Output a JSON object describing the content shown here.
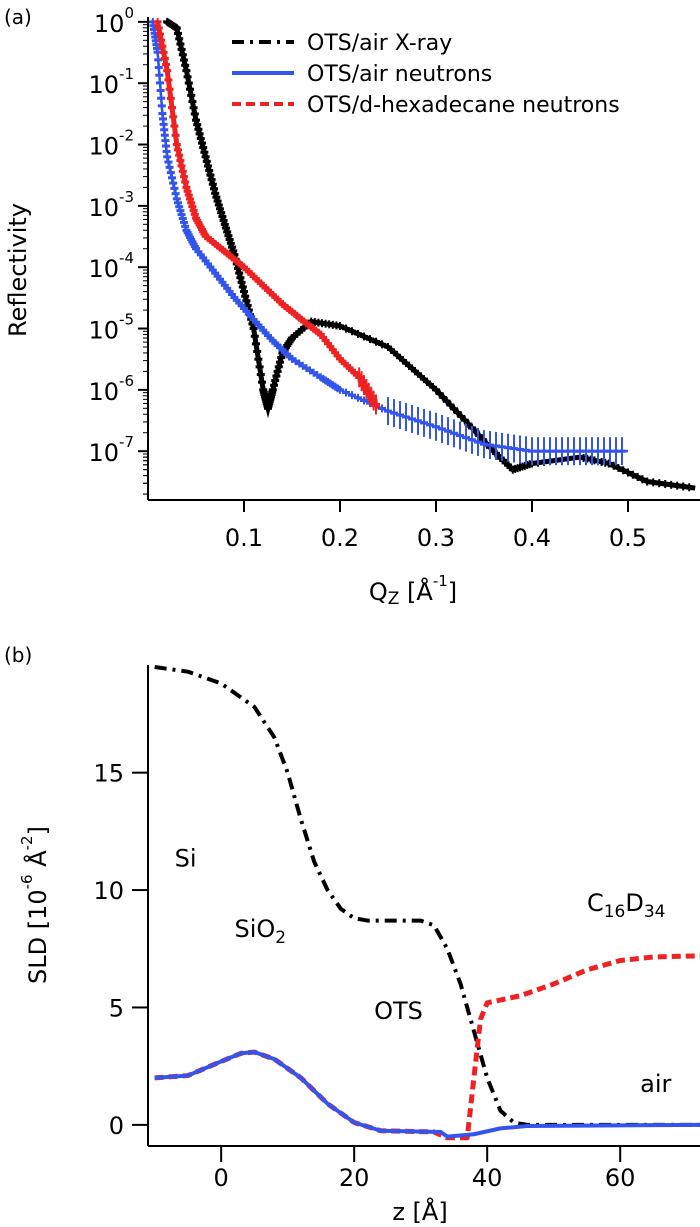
{
  "chart_data": [
    {
      "panel_label": "(a)",
      "type": "scatter",
      "xlabel": {
        "main": "Q",
        "sub": "Z",
        "rest": " [Å",
        "sup": "-1",
        "end": "]"
      },
      "ylabel": "Reflectivity",
      "xlim": [
        0,
        0.575
      ],
      "ylim": [
        1.6e-08,
        1.2
      ],
      "yscale": "log",
      "xticks": [
        "0.1",
        "0.2",
        "0.3",
        "0.4",
        "0.5"
      ],
      "xtick_values": [
        0.1,
        0.2,
        0.3,
        0.4,
        0.5
      ],
      "yticks": [
        {
          "base": "10",
          "exp": "0"
        },
        {
          "base": "10",
          "exp": "-1"
        },
        {
          "base": "10",
          "exp": "-2"
        },
        {
          "base": "10",
          "exp": "-3"
        },
        {
          "base": "10",
          "exp": "-4"
        },
        {
          "base": "10",
          "exp": "-5"
        },
        {
          "base": "10",
          "exp": "-6"
        },
        {
          "base": "10",
          "exp": "-7"
        }
      ],
      "ytick_values": [
        1,
        0.1,
        0.01,
        0.001,
        0.0001,
        1e-05,
        1e-06,
        1e-07
      ],
      "legend_position": "top-right",
      "series": [
        {
          "name": "OTS/air X-ray",
          "color": "#000000",
          "style": "dash-dot",
          "x": [
            0.02,
            0.03,
            0.04,
            0.05,
            0.06,
            0.07,
            0.08,
            0.09,
            0.1,
            0.11,
            0.12,
            0.125,
            0.13,
            0.14,
            0.15,
            0.17,
            0.2,
            0.25,
            0.3,
            0.33,
            0.36,
            0.38,
            0.4,
            0.45,
            0.48,
            0.52,
            0.57
          ],
          "y": [
            1.0,
            0.79,
            0.16,
            0.025,
            0.0063,
            0.0016,
            0.0005,
            0.00016,
            4e-05,
            1e-05,
            1e-06,
            5e-07,
            1e-06,
            4e-06,
            7e-06,
            1.3e-05,
            1.1e-05,
            5e-06,
            1e-06,
            3.2e-07,
            1e-07,
            5e-08,
            6.3e-08,
            8e-08,
            6.3e-08,
            3.2e-08,
            2.5e-08
          ]
        },
        {
          "name": "OTS/air neutrons",
          "color": "#3355ee",
          "style": "solid",
          "x": [
            0.005,
            0.01,
            0.015,
            0.02,
            0.03,
            0.04,
            0.05,
            0.07,
            0.09,
            0.11,
            0.13,
            0.15,
            0.18,
            0.2,
            0.25,
            0.3,
            0.35,
            0.4,
            0.45,
            0.5
          ],
          "y": [
            1.0,
            0.32,
            0.032,
            0.0063,
            0.0013,
            0.0004,
            0.0002,
            8e-05,
            3.2e-05,
            1.4e-05,
            6.3e-06,
            3.2e-06,
            1.6e-06,
            1e-06,
            4.5e-07,
            2.5e-07,
            1.3e-07,
            1e-07,
            1e-07,
            1e-07
          ]
        },
        {
          "name": "OTS/d-hexadecane neutrons",
          "color": "#ee2222",
          "style": "dashed",
          "x": [
            0.01,
            0.02,
            0.03,
            0.04,
            0.05,
            0.06,
            0.08,
            0.1,
            0.12,
            0.14,
            0.16,
            0.18,
            0.2,
            0.22,
            0.24
          ],
          "y": [
            1.0,
            0.16,
            0.01,
            0.002,
            0.00063,
            0.00032,
            0.00018,
            0.0001,
            5e-05,
            2.5e-05,
            1.4e-05,
            8e-06,
            3.2e-06,
            1.6e-06,
            5e-07
          ]
        }
      ]
    },
    {
      "panel_label": "(b)",
      "type": "line",
      "xlabel": "z [Å]",
      "ylabel": {
        "main": "SLD  [10",
        "sup1": "-6",
        "mid": " Å",
        "sup2": "-2",
        "end": "]"
      },
      "xlim": [
        -11,
        72
      ],
      "ylim": [
        -0.9,
        19.5
      ],
      "xticks": [
        "0",
        "20",
        "40",
        "60"
      ],
      "xtick_values": [
        0,
        20,
        40,
        60
      ],
      "yticks": [
        "0",
        "5",
        "10",
        "15"
      ],
      "ytick_values": [
        0,
        5,
        10,
        15
      ],
      "annotations": [
        {
          "text": "Si",
          "x": -7,
          "y": 11
        },
        {
          "text": "SiO",
          "sub": "2",
          "x": 2,
          "y": 8
        },
        {
          "text": "OTS",
          "x": 23,
          "y": 4.5
        },
        {
          "text": "air",
          "x": 63,
          "y": 1.4
        },
        {
          "text": "C",
          "sub": "16",
          "text2": "D",
          "sub2": "34",
          "x": 55,
          "y": 9.1,
          "color": "#ee2222"
        }
      ],
      "series": [
        {
          "color": "#000000",
          "style": "dash-dot",
          "x": [
            -10,
            -5,
            0,
            5,
            8,
            10,
            12,
            14,
            16,
            18,
            20,
            22,
            30,
            32,
            34,
            36,
            38,
            40,
            42,
            44,
            46,
            72
          ],
          "y": [
            19.5,
            19.3,
            18.8,
            17.8,
            16.5,
            15,
            13,
            11.2,
            10,
            9.2,
            8.8,
            8.7,
            8.7,
            8.5,
            7.5,
            6,
            4,
            2,
            0.6,
            0.1,
            0,
            0
          ]
        },
        {
          "color": "#ee2222",
          "style": "dashed",
          "x": [
            -10,
            -5,
            0,
            3,
            5,
            8,
            12,
            16,
            20,
            24,
            32,
            34,
            37,
            38,
            39,
            40,
            45,
            50,
            55,
            60,
            65,
            72
          ],
          "y": [
            2.0,
            2.1,
            2.7,
            3.05,
            3.1,
            2.8,
            2.0,
            0.9,
            0.1,
            -0.25,
            -0.3,
            -0.55,
            -0.55,
            2,
            4.5,
            5.2,
            5.5,
            6.0,
            6.6,
            7.0,
            7.15,
            7.2
          ]
        },
        {
          "color": "#3355ee",
          "style": "solid",
          "x": [
            -10,
            -5,
            0,
            3,
            5,
            8,
            12,
            16,
            20,
            24,
            32,
            33,
            34,
            38,
            42,
            46,
            72
          ],
          "y": [
            2.0,
            2.1,
            2.7,
            3.05,
            3.1,
            2.8,
            2.0,
            0.9,
            0.1,
            -0.25,
            -0.3,
            -0.3,
            -0.5,
            -0.4,
            -0.15,
            -0.05,
            0
          ]
        }
      ]
    }
  ]
}
